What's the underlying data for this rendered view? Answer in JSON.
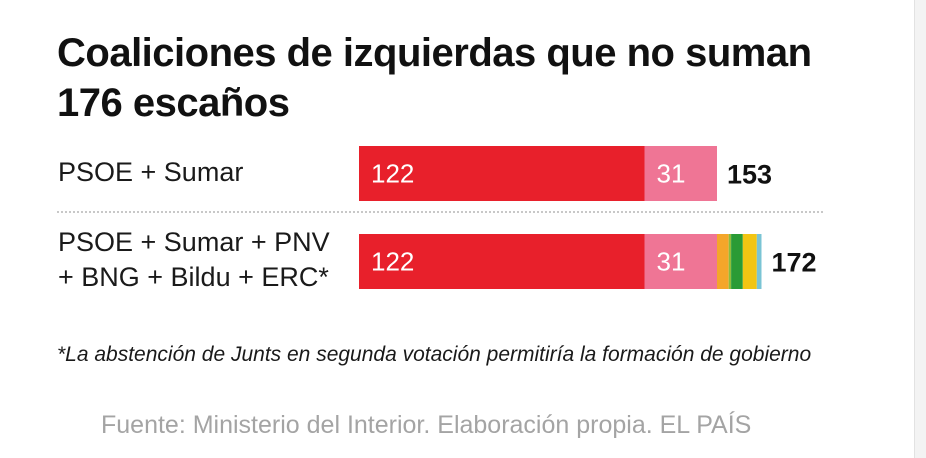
{
  "title": "Coaliciones de izquierdas que no suman 176 escaños",
  "chart_data": {
    "type": "bar",
    "orientation": "horizontal",
    "stacked": true,
    "title": "Coaliciones de izquierdas que no suman 176 escaños",
    "categories": [
      "PSOE + Sumar",
      "PSOE + Sumar + PNV + BNG + Bildu + ERC*"
    ],
    "category_lines": [
      [
        "PSOE + Sumar"
      ],
      [
        "PSOE + Sumar + PNV",
        "+ BNG + Bildu + ERC*"
      ]
    ],
    "series": [
      {
        "values": [
          122,
          122
        ],
        "color": "#e8202b",
        "labels": [
          "122",
          "122"
        ]
      },
      {
        "values": [
          31,
          31
        ],
        "color": "#ef7595",
        "labels": [
          "31",
          "31"
        ]
      },
      {
        "values": [
          0,
          5
        ],
        "color": "#f4a62a",
        "labels": [
          "",
          ""
        ]
      },
      {
        "values": [
          0,
          1
        ],
        "color": "#8fbd3a",
        "labels": [
          "",
          ""
        ]
      },
      {
        "values": [
          0,
          5
        ],
        "color": "#2a9b35",
        "labels": [
          "",
          ""
        ]
      },
      {
        "values": [
          0,
          6
        ],
        "color": "#f2c513",
        "labels": [
          "",
          ""
        ]
      },
      {
        "values": [
          0,
          2
        ],
        "color": "#7ac4d4",
        "labels": [
          "",
          ""
        ]
      }
    ],
    "totals": [
      "153",
      "172"
    ],
    "xlim": [
      0,
      176
    ],
    "grid": false,
    "legend": "none"
  },
  "footnote": "*La abstención de Junts en segunda votación permitiría la formación de gobierno",
  "source": "Fuente: Ministerio del Interior. Elaboración propia. EL PAÍS"
}
